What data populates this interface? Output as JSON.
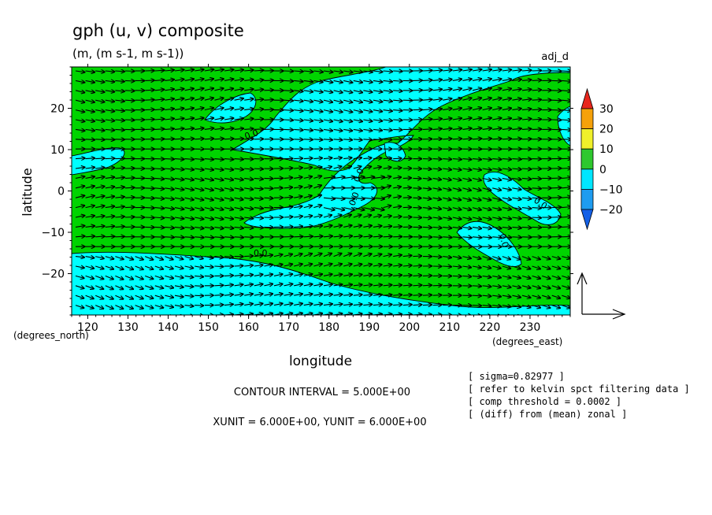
{
  "chart_data": {
    "type": "contour-vector",
    "title": "gph (u, v) composite",
    "subtitle": "(m, (m s-1, m s-1))",
    "corner_label": "adj_d",
    "xlabel": "longitude",
    "ylabel": "latitude",
    "x_unit_label": "(degrees_east)",
    "y_unit_label": "(degrees_north)",
    "xlim": [
      116,
      240
    ],
    "ylim": [
      -30,
      30
    ],
    "x_ticks": [
      120,
      130,
      140,
      150,
      160,
      170,
      180,
      190,
      200,
      210,
      220,
      230
    ],
    "y_ticks": [
      20,
      10,
      0,
      -10,
      -20
    ],
    "x_tick_labels": [
      "120",
      "130",
      "140",
      "150",
      "160",
      "170",
      "180",
      "190",
      "200",
      "210",
      "220",
      "230"
    ],
    "y_tick_labels": [
      "20",
      "10",
      "0",
      "−10",
      "−20"
    ],
    "contour_interval": "CONTOUR INTERVAL = 5.000E+00",
    "vector_units": "XUNIT = 6.000E+00, YUNIT = 6.000E+00",
    "notes": [
      "[ sigma=0.82977 ]",
      "[ refer to kelvin spct filtering data ]",
      "[ comp threshold = 0.0002 ]",
      "[ (diff) from (mean) zonal ]"
    ],
    "colorbar": {
      "levels": [
        30,
        20,
        10,
        0,
        -10,
        -20
      ],
      "level_labels": [
        "30",
        "20",
        "10",
        "0",
        "−10",
        "−20"
      ],
      "colors": [
        "#e8261c",
        "#f5a10a",
        "#f0f02a",
        "#2ec82e",
        "#00e6ff",
        "#1e9cf0",
        "#1460e6"
      ]
    },
    "contour_labels": [
      "0.0",
      "0.0",
      "0.0",
      "0.0",
      "0.0",
      "0.0"
    ],
    "field_colors": {
      "positive": "#00d400",
      "negative": "#00ffff"
    }
  }
}
